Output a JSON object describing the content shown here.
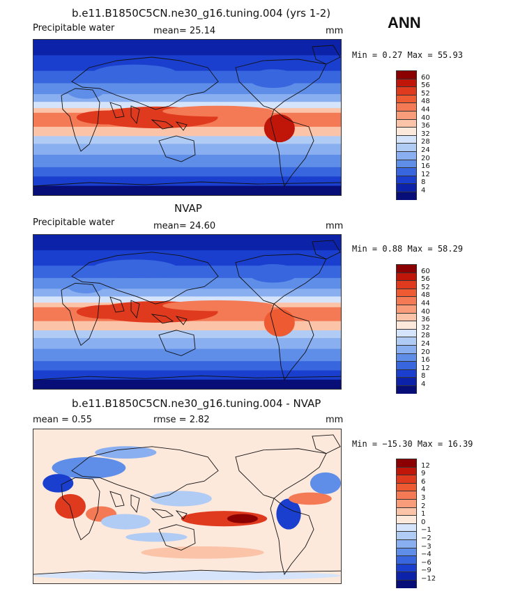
{
  "season": "ANN",
  "panels": [
    {
      "title": "b.e11.B1850C5CN.ne30_g16.tuning.004 (yrs 1-2)",
      "left_label": "Precipitable water",
      "stat_text": "mean=  25.14",
      "units": "mm",
      "minmax": "Min =    0.27 Max =  55.93",
      "colorbar": {
        "ticks": [
          "60",
          "56",
          "52",
          "48",
          "44",
          "40",
          "36",
          "32",
          "28",
          "24",
          "20",
          "16",
          "12",
          "8",
          "4"
        ],
        "colors": [
          "#8b0000",
          "#c0160a",
          "#e03a1e",
          "#ee5a32",
          "#f47a55",
          "#f89c7a",
          "#fbc3a8",
          "#fde8dc",
          "#d5e4fa",
          "#b0cbf4",
          "#8aaff0",
          "#5f8ee8",
          "#3766df",
          "#1a3fce",
          "#0c22a8",
          "#080e78"
        ]
      }
    },
    {
      "title": "NVAP",
      "left_label": "Precipitable water",
      "stat_text": "mean=  24.60",
      "units": "mm",
      "minmax": "Min =    0.88 Max =  58.29",
      "colorbar": {
        "ticks": [
          "60",
          "56",
          "52",
          "48",
          "44",
          "40",
          "36",
          "32",
          "28",
          "24",
          "20",
          "16",
          "12",
          "8",
          "4"
        ],
        "colors": [
          "#8b0000",
          "#c0160a",
          "#e03a1e",
          "#ee5a32",
          "#f47a55",
          "#f89c7a",
          "#fbc3a8",
          "#fde8dc",
          "#d5e4fa",
          "#b0cbf4",
          "#8aaff0",
          "#5f8ee8",
          "#3766df",
          "#1a3fce",
          "#0c22a8",
          "#080e78"
        ]
      }
    },
    {
      "title": "b.e11.B1850C5CN.ne30_g16.tuning.004 - NVAP",
      "left_label": "mean =    0.55",
      "stat_text": "rmse =    2.82",
      "units": "mm",
      "minmax": "Min = −15.30 Max =  16.39",
      "colorbar": {
        "ticks": [
          "12",
          "9",
          "6",
          "4",
          "3",
          "2",
          "1",
          "0",
          "−1",
          "−2",
          "−3",
          "−4",
          "−6",
          "−9",
          "−12"
        ],
        "colors": [
          "#8b0000",
          "#c0160a",
          "#e03a1e",
          "#ee5a32",
          "#f47a55",
          "#f89c7a",
          "#fbc3a8",
          "#fde8dc",
          "#d5e4fa",
          "#b0cbf4",
          "#8aaff0",
          "#5f8ee8",
          "#3766df",
          "#1a3fce",
          "#0c22a8",
          "#080e78"
        ]
      }
    }
  ]
}
